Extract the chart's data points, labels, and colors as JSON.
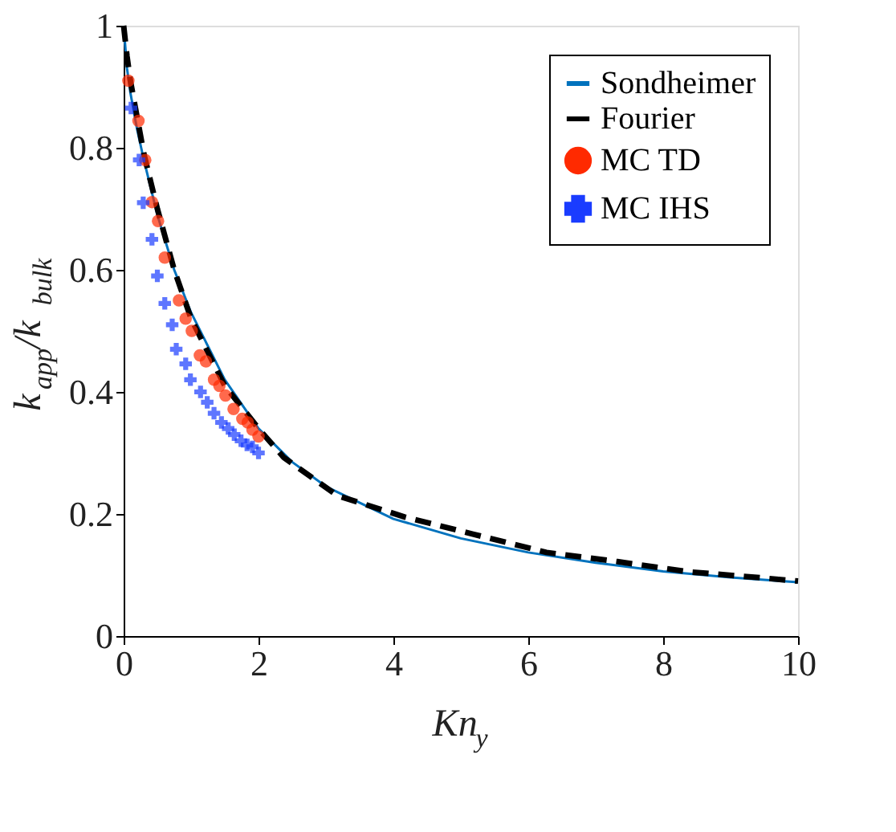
{
  "chart_data": {
    "type": "line",
    "xlabel": "Kn$_{y}$",
    "ylabel": "k$_{app}$/k$_{bulk}$",
    "xlim": [
      0,
      10
    ],
    "ylim": [
      0,
      1
    ],
    "xticks": [
      0,
      2,
      4,
      6,
      8,
      10
    ],
    "yticks": [
      0,
      0.2,
      0.4,
      0.6,
      0.8,
      1
    ],
    "grid": false,
    "legend": "top right",
    "series": [
      {
        "name": "Sondheimer",
        "type": "line",
        "line_style": "solid",
        "color": "#0072bd",
        "x": [
          0,
          0.05,
          0.1,
          0.2,
          0.3,
          0.5,
          0.75,
          1,
          1.5,
          2,
          2.5,
          3,
          4,
          5,
          6,
          7,
          8,
          9,
          10
        ],
        "values": [
          1,
          0.93,
          0.89,
          0.83,
          0.78,
          0.69,
          0.6,
          0.53,
          0.42,
          0.34,
          0.285,
          0.245,
          0.192,
          0.16,
          0.137,
          0.12,
          0.106,
          0.096,
          0.088
        ]
      },
      {
        "name": "Fourier",
        "type": "line",
        "line_style": "dashed",
        "color": "#000000",
        "x": [
          0,
          0.05,
          0.1,
          0.2,
          0.3,
          0.5,
          0.75,
          1,
          1.5,
          2,
          2.37,
          3.17,
          4.17,
          5.18,
          6.27,
          7.32,
          8.4,
          9.5,
          10
        ],
        "values": [
          1,
          0.95,
          0.91,
          0.85,
          0.79,
          0.7,
          0.6,
          0.52,
          0.41,
          0.34,
          0.293,
          0.23,
          0.195,
          0.167,
          0.137,
          0.122,
          0.105,
          0.095,
          0.09
        ]
      },
      {
        "name": "MC TD",
        "type": "scatter",
        "marker": "circle",
        "color": "#ff2a00",
        "x": [
          0.07,
          0.22,
          0.32,
          0.42,
          0.51,
          0.61,
          0.82,
          0.92,
          1.01,
          1.13,
          1.22,
          1.34,
          1.42,
          1.51,
          1.63,
          1.76,
          1.84,
          1.91,
          2.0
        ],
        "values": [
          0.91,
          0.844,
          0.78,
          0.711,
          0.68,
          0.62,
          0.55,
          0.52,
          0.5,
          0.46,
          0.45,
          0.42,
          0.41,
          0.394,
          0.372,
          0.356,
          0.35,
          0.338,
          0.327
        ]
      },
      {
        "name": "MC IHS",
        "type": "scatter",
        "marker": "cross",
        "color": "#1a3cff",
        "x": [
          0.11,
          0.23,
          0.29,
          0.42,
          0.5,
          0.61,
          0.72,
          0.78,
          0.92,
          0.99,
          1.14,
          1.24,
          1.34,
          1.45,
          1.55,
          1.64,
          1.74,
          1.83,
          1.91,
          2.0
        ],
        "values": [
          0.865,
          0.78,
          0.71,
          0.65,
          0.59,
          0.545,
          0.51,
          0.47,
          0.446,
          0.42,
          0.4,
          0.383,
          0.365,
          0.35,
          0.34,
          0.33,
          0.32,
          0.313,
          0.31,
          0.3
        ]
      }
    ]
  }
}
